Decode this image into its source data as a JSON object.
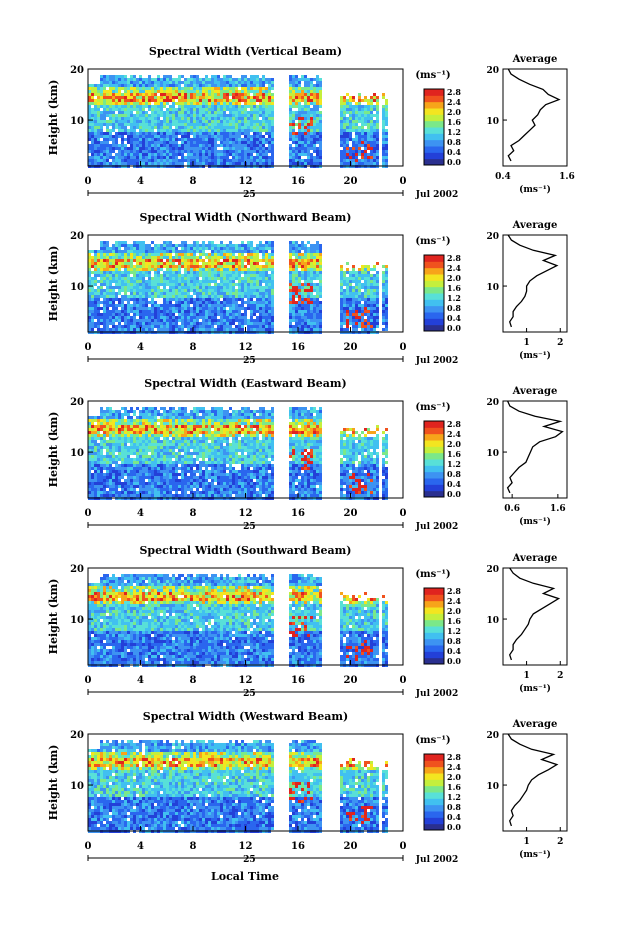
{
  "figure": {
    "x_label": "Local Time",
    "day_label": "25",
    "date_label": "Jul 2002"
  },
  "chart_data": [
    {
      "type": "heatmap",
      "title": "Spectral Width (Vertical Beam)",
      "ylabel": "Height (km)",
      "x_ticks": [
        "0",
        "4",
        "8",
        "12",
        "16",
        "20",
        "0"
      ],
      "y_ticks": [
        "20",
        "10"
      ],
      "xlim": [
        0,
        24
      ],
      "ylim": [
        1,
        20
      ],
      "colorbar_unit": "(ms⁻¹)",
      "colorbar_ticks": [
        "2.8",
        "2.4",
        "2.0",
        "1.6",
        "1.2",
        "0.8",
        "0.4",
        "0.0"
      ],
      "avg_title": "Average",
      "avg_xlabel": "(ms⁻¹)",
      "avg_x_ticks": [
        "0.4",
        "1.6"
      ],
      "avg_xlim": [
        0.4,
        1.6
      ],
      "average_profile": [
        {
          "h": 2,
          "v": 0.55
        },
        {
          "h": 3,
          "v": 0.5
        },
        {
          "h": 4,
          "v": 0.6
        },
        {
          "h": 5,
          "v": 0.55
        },
        {
          "h": 6,
          "v": 0.7
        },
        {
          "h": 7,
          "v": 0.8
        },
        {
          "h": 8,
          "v": 0.9
        },
        {
          "h": 9,
          "v": 1.0
        },
        {
          "h": 10,
          "v": 0.95
        },
        {
          "h": 11,
          "v": 1.05
        },
        {
          "h": 12,
          "v": 1.1
        },
        {
          "h": 13,
          "v": 1.2
        },
        {
          "h": 14,
          "v": 1.45
        },
        {
          "h": 15,
          "v": 1.25
        },
        {
          "h": 16,
          "v": 1.15
        },
        {
          "h": 17,
          "v": 0.9
        },
        {
          "h": 18,
          "v": 0.7
        },
        {
          "h": 19,
          "v": 0.55
        },
        {
          "h": 20,
          "v": 0.5
        }
      ]
    },
    {
      "type": "heatmap",
      "title": "Spectral Width (Northward Beam)",
      "ylabel": "Height (km)",
      "x_ticks": [
        "0",
        "4",
        "8",
        "12",
        "16",
        "20",
        "0"
      ],
      "y_ticks": [
        "20",
        "10"
      ],
      "xlim": [
        0,
        24
      ],
      "ylim": [
        1,
        20
      ],
      "colorbar_unit": "(ms⁻¹)",
      "colorbar_ticks": [
        "2.8",
        "2.4",
        "2.0",
        "1.6",
        "1.2",
        "0.8",
        "0.4",
        "0.0"
      ],
      "avg_title": "Average",
      "avg_xlabel": "(ms⁻¹)",
      "avg_x_ticks": [
        "1",
        "2"
      ],
      "avg_xlim": [
        0.3,
        2.2
      ],
      "average_profile": [
        {
          "h": 2,
          "v": 0.55
        },
        {
          "h": 3,
          "v": 0.5
        },
        {
          "h": 4,
          "v": 0.6
        },
        {
          "h": 5,
          "v": 0.6
        },
        {
          "h": 6,
          "v": 0.7
        },
        {
          "h": 7,
          "v": 0.85
        },
        {
          "h": 8,
          "v": 0.95
        },
        {
          "h": 9,
          "v": 1.0
        },
        {
          "h": 10,
          "v": 1.0
        },
        {
          "h": 11,
          "v": 1.1
        },
        {
          "h": 12,
          "v": 1.3
        },
        {
          "h": 13,
          "v": 1.6
        },
        {
          "h": 14,
          "v": 1.9
        },
        {
          "h": 15,
          "v": 1.5
        },
        {
          "h": 16,
          "v": 1.85
        },
        {
          "h": 17,
          "v": 1.2
        },
        {
          "h": 18,
          "v": 0.8
        },
        {
          "h": 19,
          "v": 0.55
        },
        {
          "h": 20,
          "v": 0.45
        }
      ]
    },
    {
      "type": "heatmap",
      "title": "Spectral Width (Eastward Beam)",
      "ylabel": "Height (km)",
      "x_ticks": [
        "0",
        "4",
        "8",
        "12",
        "16",
        "20",
        "0"
      ],
      "y_ticks": [
        "20",
        "10"
      ],
      "xlim": [
        0,
        24
      ],
      "ylim": [
        1,
        20
      ],
      "colorbar_unit": "(ms⁻¹)",
      "colorbar_ticks": [
        "2.8",
        "2.4",
        "2.0",
        "1.6",
        "1.2",
        "0.8",
        "0.4",
        "0.0"
      ],
      "avg_title": "Average",
      "avg_xlabel": "(ms⁻¹)",
      "avg_x_ticks": [
        "0.6",
        "1.6"
      ],
      "avg_xlim": [
        0.4,
        1.8
      ],
      "average_profile": [
        {
          "h": 2,
          "v": 0.55
        },
        {
          "h": 3,
          "v": 0.5
        },
        {
          "h": 4,
          "v": 0.6
        },
        {
          "h": 5,
          "v": 0.55
        },
        {
          "h": 6,
          "v": 0.65
        },
        {
          "h": 7,
          "v": 0.75
        },
        {
          "h": 8,
          "v": 0.9
        },
        {
          "h": 9,
          "v": 0.95
        },
        {
          "h": 10,
          "v": 1.0
        },
        {
          "h": 11,
          "v": 1.05
        },
        {
          "h": 12,
          "v": 1.2
        },
        {
          "h": 13,
          "v": 1.55
        },
        {
          "h": 14,
          "v": 1.7
        },
        {
          "h": 15,
          "v": 1.3
        },
        {
          "h": 16,
          "v": 1.65
        },
        {
          "h": 17,
          "v": 1.1
        },
        {
          "h": 18,
          "v": 0.75
        },
        {
          "h": 19,
          "v": 0.55
        },
        {
          "h": 20,
          "v": 0.5
        }
      ]
    },
    {
      "type": "heatmap",
      "title": "Spectral Width (Southward Beam)",
      "ylabel": "Height (km)",
      "x_ticks": [
        "0",
        "4",
        "8",
        "12",
        "16",
        "20",
        "0"
      ],
      "y_ticks": [
        "20",
        "10"
      ],
      "xlim": [
        0,
        24
      ],
      "ylim": [
        1,
        20
      ],
      "colorbar_unit": "(ms⁻¹)",
      "colorbar_ticks": [
        "2.8",
        "2.4",
        "2.0",
        "1.6",
        "1.2",
        "0.8",
        "0.4",
        "0.0"
      ],
      "avg_title": "Average",
      "avg_xlabel": "(ms⁻¹)",
      "avg_x_ticks": [
        "1",
        "2"
      ],
      "avg_xlim": [
        0.3,
        2.2
      ],
      "average_profile": [
        {
          "h": 2,
          "v": 0.55
        },
        {
          "h": 3,
          "v": 0.5
        },
        {
          "h": 4,
          "v": 0.6
        },
        {
          "h": 5,
          "v": 0.6
        },
        {
          "h": 6,
          "v": 0.7
        },
        {
          "h": 7,
          "v": 0.85
        },
        {
          "h": 8,
          "v": 0.95
        },
        {
          "h": 9,
          "v": 1.05
        },
        {
          "h": 10,
          "v": 1.1
        },
        {
          "h": 11,
          "v": 1.2
        },
        {
          "h": 12,
          "v": 1.45
        },
        {
          "h": 13,
          "v": 1.7
        },
        {
          "h": 14,
          "v": 1.95
        },
        {
          "h": 15,
          "v": 1.5
        },
        {
          "h": 16,
          "v": 1.8
        },
        {
          "h": 17,
          "v": 1.2
        },
        {
          "h": 18,
          "v": 0.8
        },
        {
          "h": 19,
          "v": 0.6
        },
        {
          "h": 20,
          "v": 0.5
        }
      ]
    },
    {
      "type": "heatmap",
      "title": "Spectral Width (Westward Beam)",
      "ylabel": "Height (km)",
      "x_ticks": [
        "0",
        "4",
        "8",
        "12",
        "16",
        "20",
        "0"
      ],
      "y_ticks": [
        "20",
        "10"
      ],
      "xlim": [
        0,
        24
      ],
      "ylim": [
        1,
        20
      ],
      "colorbar_unit": "(ms⁻¹)",
      "colorbar_ticks": [
        "2.8",
        "2.4",
        "2.0",
        "1.6",
        "1.2",
        "0.8",
        "0.4",
        "0.0"
      ],
      "avg_title": "Average",
      "avg_xlabel": "(ms⁻¹)",
      "avg_x_ticks": [
        "1",
        "2"
      ],
      "avg_xlim": [
        0.3,
        2.2
      ],
      "average_profile": [
        {
          "h": 2,
          "v": 0.55
        },
        {
          "h": 3,
          "v": 0.5
        },
        {
          "h": 4,
          "v": 0.6
        },
        {
          "h": 5,
          "v": 0.55
        },
        {
          "h": 6,
          "v": 0.65
        },
        {
          "h": 7,
          "v": 0.8
        },
        {
          "h": 8,
          "v": 0.9
        },
        {
          "h": 9,
          "v": 1.0
        },
        {
          "h": 10,
          "v": 1.05
        },
        {
          "h": 11,
          "v": 1.15
        },
        {
          "h": 12,
          "v": 1.35
        },
        {
          "h": 13,
          "v": 1.65
        },
        {
          "h": 14,
          "v": 1.9
        },
        {
          "h": 15,
          "v": 1.45
        },
        {
          "h": 16,
          "v": 1.8
        },
        {
          "h": 17,
          "v": 1.15
        },
        {
          "h": 18,
          "v": 0.8
        },
        {
          "h": 19,
          "v": 0.55
        },
        {
          "h": 20,
          "v": 0.45
        }
      ]
    }
  ],
  "colors": {
    "gap": "#ffffff",
    "hot": "#e8312a",
    "scale": [
      "#2a2f8f",
      "#2340d8",
      "#2a66ee",
      "#3d93f2",
      "#41c0f0",
      "#58e0d8",
      "#7be889",
      "#c4ef3c",
      "#f3e520",
      "#f7a41a",
      "#f0521e",
      "#e0241f"
    ]
  }
}
